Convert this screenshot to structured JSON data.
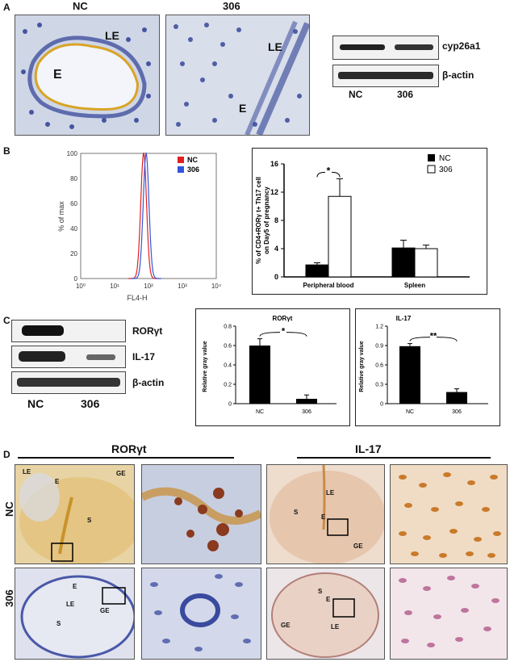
{
  "panel_a": {
    "letter": "A",
    "col_nc": "NC",
    "col_306": "306",
    "img1_labels": [
      "LE",
      "E"
    ],
    "img2_labels": [
      "LE",
      "E"
    ],
    "blot_labels": [
      "cyp26a1",
      "β-actin"
    ],
    "blot_lanes": [
      "NC",
      "306"
    ]
  },
  "panel_b": {
    "letter": "B",
    "flow_chart": {
      "ylabel": "% of max",
      "xlabel": "FL4-H",
      "yticks": [
        "0",
        "20",
        "40",
        "60",
        "80",
        "100"
      ],
      "xticks": [
        "10⁰",
        "10¹",
        "10²",
        "10³",
        "10⁴"
      ],
      "legend": [
        "NC",
        "306"
      ],
      "legend_colors": [
        "#e02020",
        "#3355dd"
      ]
    },
    "bar_chart": {
      "ylabel_line1": "% of CD4+RORγ t+ Th17 cell",
      "ylabel_line2": "on Day5 of pregnancy",
      "yticks": [
        "0",
        "4",
        "8",
        "12",
        "16"
      ],
      "legend": [
        "NC",
        "306"
      ],
      "categories": [
        "Peripheral blood",
        "Spleen"
      ],
      "star": "*"
    }
  },
  "panel_c": {
    "letter": "C",
    "blot_labels": [
      "RORγt",
      "IL-17",
      "β-actin"
    ],
    "blot_lanes": [
      "NC",
      "306"
    ],
    "chart1": {
      "title": "RORγt",
      "ylabel": "Relative gray value",
      "yticks": [
        "0",
        "0.2",
        "0.4",
        "0.6",
        "0.8"
      ],
      "categories": [
        "NC",
        "306"
      ],
      "star": "*"
    },
    "chart2": {
      "title": "IL-17",
      "ylabel": "Relative gray value",
      "yticks": [
        "0",
        "0.3",
        "0.6",
        "0.9",
        "1.2"
      ],
      "categories": [
        "NC",
        "306"
      ],
      "star": "**"
    }
  },
  "panel_d": {
    "letter": "D",
    "header_left": "RORγt",
    "header_right": "IL-17",
    "row_nc": "NC",
    "row_306": "306",
    "nc_ror_labels": [
      "LE",
      "E",
      "GE",
      "S"
    ],
    "nc_il_labels": [
      "LE",
      "S",
      "E",
      "GE"
    ],
    "r306_ror_labels": [
      "E",
      "LE",
      "GE",
      "S"
    ],
    "r306_il_labels": [
      "S",
      "E",
      "GE",
      "LE"
    ]
  },
  "chart_data": [
    {
      "type": "line",
      "xscale": "log",
      "xlim": [
        1,
        10000
      ],
      "ylim": [
        0,
        100
      ],
      "xlabel": "FL4-H",
      "ylabel": "% of max",
      "series": [
        {
          "name": "NC",
          "color": "#e02020",
          "peak_x": 72,
          "peak_y": 100
        },
        {
          "name": "306",
          "color": "#3355dd",
          "peak_x": 85,
          "peak_y": 100
        }
      ]
    },
    {
      "type": "bar",
      "categories": [
        "Peripheral blood",
        "Spleen"
      ],
      "ylim": [
        0,
        16
      ],
      "ylabel": "% of CD4+RORγ t+ Th17 cell on Day5 of pregnancy",
      "series": [
        {
          "name": "NC",
          "values": [
            1.7,
            4.1
          ],
          "errors": [
            0.3,
            1.1
          ],
          "fill": "#000000"
        },
        {
          "name": "306",
          "values": [
            11.4,
            4.0
          ],
          "errors": [
            2.5,
            0.5
          ],
          "fill": "#ffffff"
        }
      ],
      "significance": [
        {
          "category": "Peripheral blood",
          "label": "*"
        }
      ]
    },
    {
      "type": "bar",
      "title": "RORγt",
      "categories": [
        "NC",
        "306"
      ],
      "values": [
        0.6,
        0.05
      ],
      "errors": [
        0.07,
        0.04
      ],
      "ylim": [
        0,
        0.8
      ],
      "ylabel": "Relative gray value",
      "significance": [
        {
          "label": "*"
        }
      ]
    },
    {
      "type": "bar",
      "title": "IL-17",
      "categories": [
        "NC",
        "306"
      ],
      "values": [
        0.89,
        0.18
      ],
      "errors": [
        0.04,
        0.05
      ],
      "ylim": [
        0,
        1.2
      ],
      "ylabel": "Relative gray value",
      "significance": [
        {
          "label": "**"
        }
      ]
    }
  ]
}
